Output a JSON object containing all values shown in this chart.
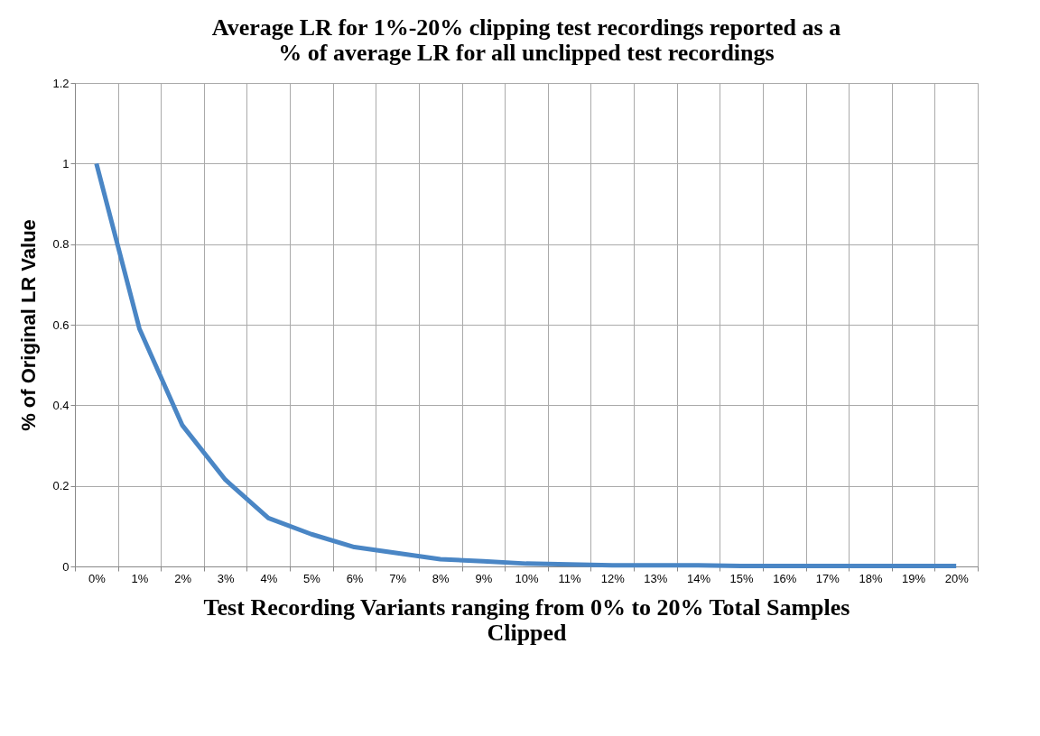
{
  "chart_data": {
    "type": "line",
    "title": [
      "Average LR for 1%-20% clipping test recordings reported as a",
      "% of average LR for all unclipped test recordings"
    ],
    "xlabel": [
      "Test Recording Variants ranging from 0% to 20% Total Samples",
      "Clipped"
    ],
    "ylabel": "% of Original LR Value",
    "categories": [
      "0%",
      "1%",
      "2%",
      "3%",
      "4%",
      "5%",
      "6%",
      "7%",
      "8%",
      "9%",
      "10%",
      "11%",
      "12%",
      "13%",
      "14%",
      "15%",
      "16%",
      "17%",
      "18%",
      "19%",
      "20%"
    ],
    "series": [
      {
        "color": "#4a86c5",
        "values": [
          1.0,
          0.59,
          0.35,
          0.215,
          0.12,
          0.08,
          0.048,
          0.033,
          0.018,
          0.013,
          0.007,
          0.005,
          0.003,
          0.003,
          0.003,
          0.001,
          0.001,
          0.001,
          0.001,
          0.001,
          0.001
        ]
      }
    ],
    "ylim": [
      0,
      1.2
    ],
    "yticks": [
      0,
      0.2,
      0.4,
      0.6,
      0.8,
      1,
      1.2
    ],
    "grid": true,
    "legend": false,
    "marker": "none",
    "line_style": "solid"
  }
}
